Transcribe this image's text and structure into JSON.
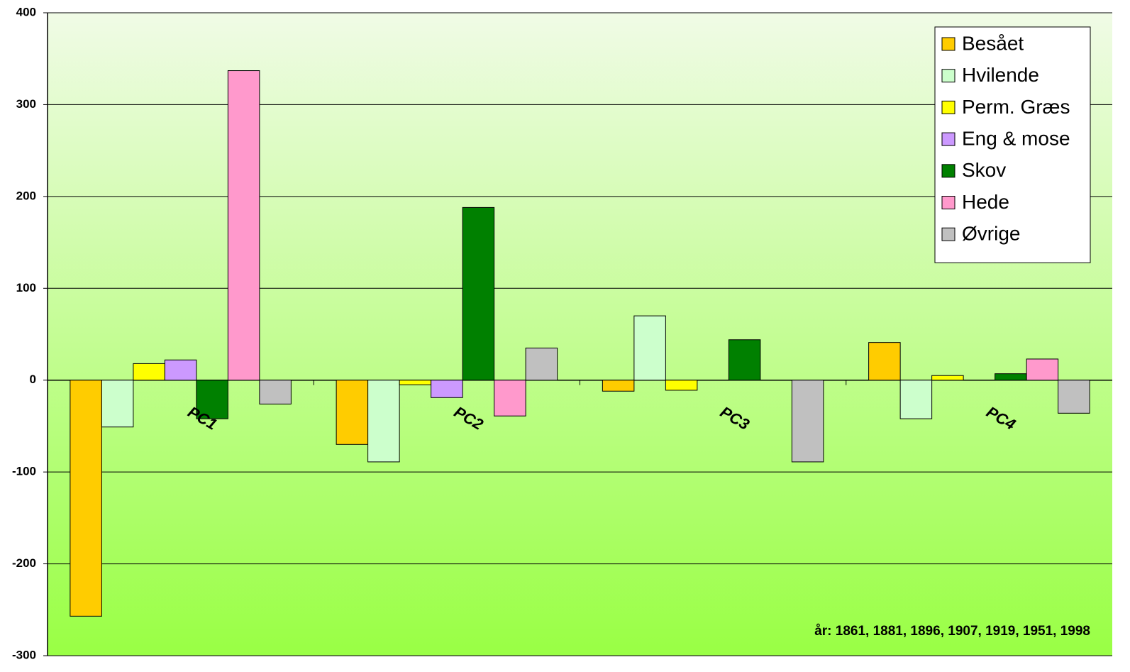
{
  "chart_data": {
    "type": "bar",
    "categories": [
      "PC1",
      "PC2",
      "PC3",
      "PC4"
    ],
    "series": [
      {
        "name": "Besået",
        "color": "#ffcc00",
        "values": [
          -257,
          -70,
          -12,
          41
        ]
      },
      {
        "name": "Hvilende",
        "color": "#ccffcc",
        "values": [
          -51,
          -89,
          70,
          -42
        ]
      },
      {
        "name": "Perm. Græs",
        "color": "#ffff00",
        "values": [
          18,
          -5,
          -11,
          5
        ]
      },
      {
        "name": "Eng & mose",
        "color": "#cc99ff",
        "values": [
          22,
          -19,
          0,
          0
        ]
      },
      {
        "name": "Skov",
        "color": "#008000",
        "values": [
          -42,
          188,
          44,
          7
        ]
      },
      {
        "name": "Hede",
        "color": "#ff99cc",
        "values": [
          337,
          -39,
          0,
          23
        ]
      },
      {
        "name": "Øvrige",
        "color": "#c0c0c0",
        "values": [
          -26,
          35,
          -89,
          -36
        ]
      }
    ],
    "ylim": [
      -300,
      400
    ],
    "yticks": [
      -300,
      -200,
      -100,
      0,
      100,
      200,
      300,
      400
    ],
    "grid": true,
    "legend": "top-right",
    "annotation": "år: 1861, 1881, 1896, 1907, 1919, 1951, 1998"
  }
}
